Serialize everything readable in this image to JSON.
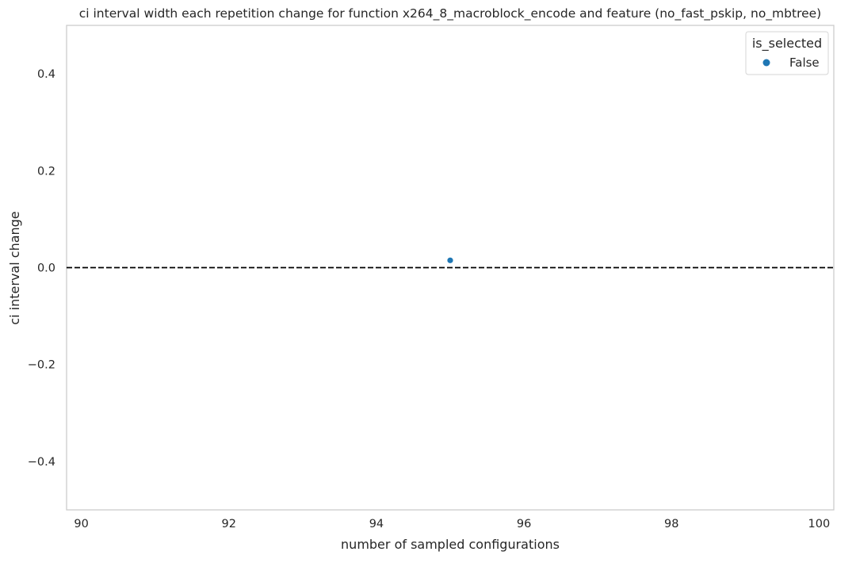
{
  "chart_data": {
    "type": "scatter",
    "title": "ci interval width each repetition change for function x264_8_macroblock_encode and feature (no_fast_pskip, no_mbtree)",
    "xlabel": "number of sampled configurations",
    "ylabel": "ci interval change",
    "xlim": [
      89.8,
      100.2
    ],
    "ylim": [
      -0.5,
      0.5
    ],
    "x_ticks": [
      90,
      92,
      94,
      96,
      98,
      100
    ],
    "y_ticks": [
      -0.4,
      -0.2,
      0.0,
      0.2,
      0.4
    ],
    "y_tick_labels": [
      "−0.4",
      "−0.2",
      "0.0",
      "0.2",
      "0.4"
    ],
    "grid": false,
    "reference_line": {
      "y": 0.0,
      "style": "dashed",
      "color": "#000000"
    },
    "legend": {
      "title": "is_selected",
      "position": "top-right",
      "entries": [
        {
          "label": "False",
          "color": "#1f77b4"
        }
      ]
    },
    "series": [
      {
        "name": "False",
        "color": "#1f77b4",
        "points": [
          {
            "x": 95,
            "y": 0.015
          }
        ]
      }
    ]
  }
}
